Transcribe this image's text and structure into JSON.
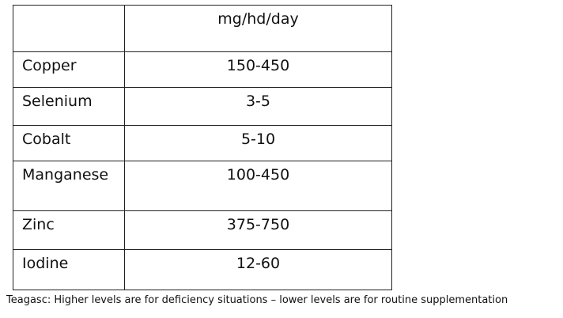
{
  "table": {
    "header": {
      "unit": "mg/hd/day"
    },
    "rows": [
      [
        "Copper",
        "150-450"
      ],
      [
        "Selenium",
        "3-5"
      ],
      [
        "Cobalt",
        "5-10"
      ],
      [
        "Manganese",
        "100-450"
      ],
      [
        "Zinc",
        "375-750"
      ],
      [
        "Iodine",
        "12-60"
      ]
    ]
  },
  "caption": "Teagasc: Higher levels are for deficiency situations – lower levels are for routine supplementation"
}
